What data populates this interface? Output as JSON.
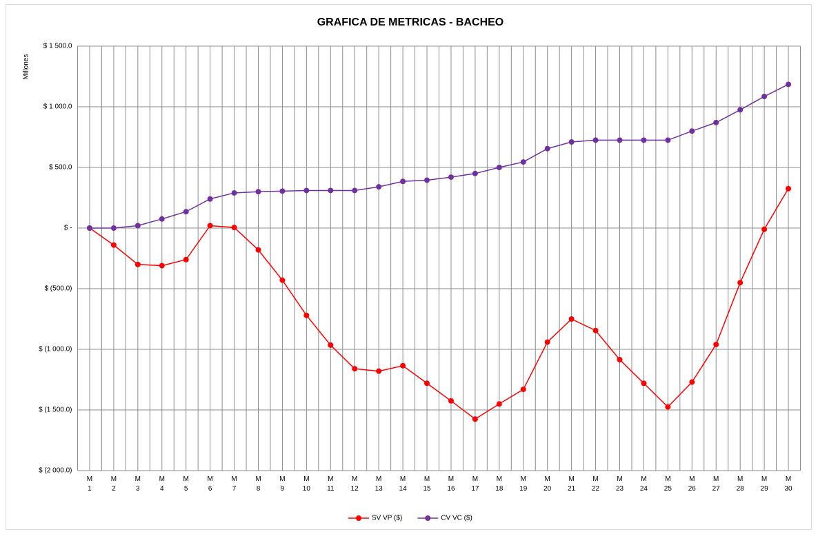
{
  "chart_data": {
    "type": "line",
    "title": "GRAFICA DE METRICAS - BACHEO",
    "y_label": "Millones",
    "categories": [
      "M 1",
      "M 2",
      "M 3",
      "M 4",
      "M 5",
      "M 6",
      "M 7",
      "M 8",
      "M 9",
      "M 10",
      "M 11",
      "M 12",
      "M 13",
      "M 14",
      "M 15",
      "M 16",
      "M 17",
      "M 18",
      "M 19",
      "M 20",
      "M 21",
      "M 22",
      "M 23",
      "M 24",
      "M 25",
      "M 26",
      "M 27",
      "M 28",
      "M 29",
      "M 30"
    ],
    "series": [
      {
        "name": "SV VP ($)",
        "color": "#ff0000",
        "values": [
          0,
          -140,
          -300,
          -310,
          -260,
          20,
          5,
          -180,
          -430,
          -720,
          -965,
          -1160,
          -1180,
          -1135,
          -1280,
          -1425,
          -1575,
          -1450,
          -1330,
          -940,
          -750,
          -845,
          -1085,
          -1280,
          -1475,
          -1270,
          -960,
          -450,
          -10,
          325
        ]
      },
      {
        "name": "CV VC ($)",
        "color": "#7030a0",
        "values": [
          0,
          0,
          20,
          75,
          135,
          240,
          290,
          300,
          305,
          310,
          310,
          310,
          340,
          385,
          395,
          420,
          450,
          500,
          545,
          655,
          710,
          725,
          725,
          725,
          725,
          800,
          870,
          975,
          1085,
          1185
        ]
      }
    ],
    "ylim": [
      -2000,
      1500
    ],
    "yticks": [
      {
        "value": -2000,
        "label": "$ (2 000.0)"
      },
      {
        "value": -1500,
        "label": "$ (1 500.0)"
      },
      {
        "value": -1000,
        "label": "$ (1 000.0)"
      },
      {
        "value": -500,
        "label": "$ (500.0)"
      },
      {
        "value": 0,
        "label": "$ -"
      },
      {
        "value": 500,
        "label": "$ 500.0"
      },
      {
        "value": 1000,
        "label": "$ 1 000.0"
      },
      {
        "value": 1500,
        "label": "$ 1 500.0"
      }
    ],
    "grid": true,
    "legend": "bottom"
  }
}
